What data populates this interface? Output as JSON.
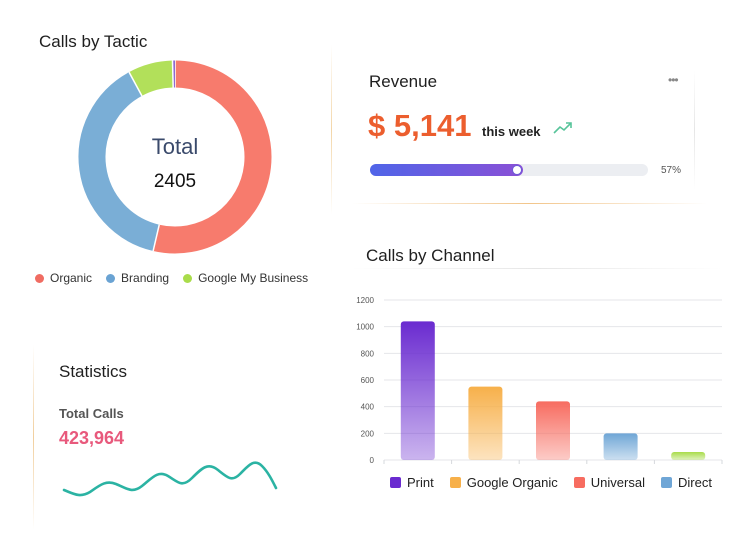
{
  "tactic": {
    "title": "Calls by Tactic",
    "center_label": "Total",
    "center_value": "2405",
    "segments": [
      {
        "name": "Organic",
        "value": 1290,
        "color": "#f77b6d"
      },
      {
        "name": "Branding",
        "value": 925,
        "color": "#7aaed6"
      },
      {
        "name": "Google My Business",
        "value": 180,
        "color": "#b2e05a"
      },
      {
        "name": "",
        "value": 10,
        "color": "#8e6bd1"
      }
    ],
    "legend": [
      {
        "label": "Organic",
        "color": "#f06c62"
      },
      {
        "label": "Branding",
        "color": "#6aa3d3"
      },
      {
        "label": "Google My Business",
        "color": "#a9dc4a"
      }
    ]
  },
  "revenue": {
    "title": "Revenue",
    "menu_icon": "more-horizontal-icon",
    "amount": "$ 5,141",
    "suffix": "this week",
    "trend_icon": "trend-up-icon",
    "progress_value": 0.57,
    "progress_label": "57%"
  },
  "channel": {
    "title": "Calls by Channel",
    "legend": [
      {
        "label": "Print",
        "color": "#6a2bd0"
      },
      {
        "label": "Google Organic",
        "color": "#f7b04a"
      },
      {
        "label": "Universal",
        "color": "#f76c60"
      },
      {
        "label": "Direct",
        "color": "#6fa6d6"
      }
    ]
  },
  "chart_data": {
    "type": "bar",
    "title": "Calls by Channel",
    "categories": [
      "Print",
      "Google Organic",
      "Universal",
      "Direct",
      ""
    ],
    "values": [
      1040,
      550,
      440,
      200,
      60
    ],
    "colors": [
      "#6a2bd0",
      "#f7b04a",
      "#f76c60",
      "#6fa6d6",
      "#a9dc4a"
    ],
    "yticks": [
      "0",
      "200",
      "400",
      "600",
      "800",
      "1000",
      "1200"
    ],
    "ylim": [
      0,
      1200
    ],
    "grid": true
  },
  "statistics": {
    "title": "Statistics",
    "label": "Total Calls",
    "value": "423,964"
  }
}
